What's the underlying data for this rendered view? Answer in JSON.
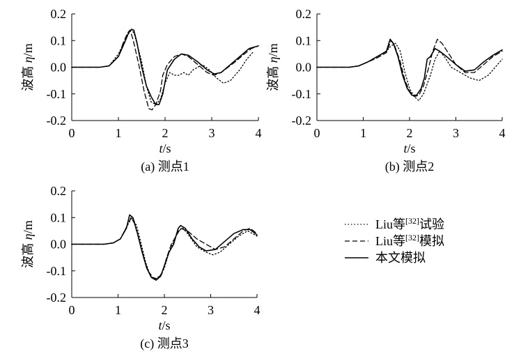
{
  "chart_data": [
    {
      "type": "line",
      "caption": "(a) 测点1",
      "xlabel_italic": "t",
      "xlabel_unit": "/s",
      "ylabel_prefix": "波高 ",
      "ylabel_italic": "η",
      "ylabel_unit": "/m",
      "xlim": [
        0,
        4
      ],
      "ylim": [
        -0.2,
        0.2
      ],
      "xticks": [
        "0",
        "1",
        "2",
        "3",
        "4"
      ],
      "yticks": [
        "-0.2",
        "-0.1",
        "0.0",
        "0.1",
        "0.2"
      ],
      "series": [
        {
          "style": "dotted",
          "points": [
            [
              0,
              0
            ],
            [
              0.6,
              0
            ],
            [
              0.8,
              0.005
            ],
            [
              1.0,
              0.05
            ],
            [
              1.2,
              0.12
            ],
            [
              1.28,
              0.145
            ],
            [
              1.35,
              0.12
            ],
            [
              1.5,
              0.02
            ],
            [
              1.6,
              -0.07
            ],
            [
              1.7,
              -0.13
            ],
            [
              1.8,
              -0.14
            ],
            [
              1.9,
              -0.12
            ],
            [
              2.0,
              -0.06
            ],
            [
              2.1,
              -0.02
            ],
            [
              2.2,
              -0.03
            ],
            [
              2.3,
              -0.03
            ],
            [
              2.4,
              -0.02
            ],
            [
              2.5,
              -0.03
            ],
            [
              2.6,
              -0.01
            ],
            [
              2.8,
              0.01
            ],
            [
              2.95,
              -0.01
            ],
            [
              3.1,
              -0.04
            ],
            [
              3.25,
              -0.06
            ],
            [
              3.4,
              -0.05
            ],
            [
              3.6,
              -0.01
            ],
            [
              3.75,
              0.03
            ],
            [
              3.9,
              0.06
            ]
          ]
        },
        {
          "style": "dashed",
          "points": [
            [
              0,
              0
            ],
            [
              0.6,
              0
            ],
            [
              0.8,
              0.005
            ],
            [
              1.0,
              0.04
            ],
            [
              1.1,
              0.09
            ],
            [
              1.2,
              0.13
            ],
            [
              1.25,
              0.14
            ],
            [
              1.32,
              0.1
            ],
            [
              1.45,
              0
            ],
            [
              1.55,
              -0.09
            ],
            [
              1.65,
              -0.155
            ],
            [
              1.72,
              -0.16
            ],
            [
              1.8,
              -0.14
            ],
            [
              1.9,
              -0.09
            ],
            [
              1.95,
              -0.03
            ],
            [
              2.05,
              0.01
            ],
            [
              2.2,
              0.04
            ],
            [
              2.35,
              0.05
            ],
            [
              2.5,
              0.04
            ],
            [
              2.7,
              0.01
            ],
            [
              2.9,
              -0.02
            ],
            [
              3.05,
              -0.03
            ],
            [
              3.2,
              -0.02
            ],
            [
              3.5,
              0.02
            ],
            [
              3.7,
              0.05
            ],
            [
              3.85,
              0.07
            ],
            [
              4.0,
              0.08
            ]
          ]
        },
        {
          "style": "solid",
          "points": [
            [
              0,
              0
            ],
            [
              0.6,
              0
            ],
            [
              0.8,
              0.005
            ],
            [
              1.0,
              0.04
            ],
            [
              1.15,
              0.1
            ],
            [
              1.22,
              0.13
            ],
            [
              1.27,
              0.14
            ],
            [
              1.33,
              0.14
            ],
            [
              1.4,
              0.09
            ],
            [
              1.5,
              0
            ],
            [
              1.6,
              -0.07
            ],
            [
              1.7,
              -0.11
            ],
            [
              1.8,
              -0.14
            ],
            [
              1.87,
              -0.14
            ],
            [
              1.95,
              -0.1
            ],
            [
              2.05,
              -0.01
            ],
            [
              2.2,
              0.03
            ],
            [
              2.35,
              0.05
            ],
            [
              2.5,
              0.045
            ],
            [
              2.7,
              0.02
            ],
            [
              2.9,
              -0.01
            ],
            [
              3.05,
              -0.025
            ],
            [
              3.2,
              -0.02
            ],
            [
              3.4,
              0.01
            ],
            [
              3.6,
              0.04
            ],
            [
              3.8,
              0.07
            ],
            [
              4.0,
              0.08
            ]
          ]
        }
      ]
    },
    {
      "type": "line",
      "caption": "(b) 测点2",
      "xlabel_italic": "t",
      "xlabel_unit": "/s",
      "ylabel_prefix": "波高 ",
      "ylabel_italic": "η",
      "ylabel_unit": "/m",
      "xlim": [
        0,
        4
      ],
      "ylim": [
        -0.2,
        0.2
      ],
      "xticks": [
        "0",
        "1",
        "2",
        "3",
        "4"
      ],
      "yticks": [
        "-0.2",
        "-0.1",
        "0.0",
        "0.1",
        "0.2"
      ],
      "series": [
        {
          "style": "dotted",
          "points": [
            [
              0,
              0
            ],
            [
              0.7,
              0
            ],
            [
              0.9,
              0.005
            ],
            [
              1.1,
              0.02
            ],
            [
              1.3,
              0.04
            ],
            [
              1.5,
              0.06
            ],
            [
              1.6,
              0.08
            ],
            [
              1.7,
              0.09
            ],
            [
              1.8,
              0.06
            ],
            [
              1.9,
              -0.02
            ],
            [
              2.0,
              -0.08
            ],
            [
              2.1,
              -0.11
            ],
            [
              2.2,
              -0.125
            ],
            [
              2.3,
              -0.1
            ],
            [
              2.45,
              -0.03
            ],
            [
              2.55,
              0.03
            ],
            [
              2.65,
              0.06
            ],
            [
              2.75,
              0.04
            ],
            [
              2.9,
              0
            ],
            [
              3.1,
              -0.02
            ],
            [
              3.3,
              -0.04
            ],
            [
              3.5,
              -0.05
            ],
            [
              3.7,
              -0.03
            ],
            [
              3.85,
              0
            ],
            [
              4.0,
              0.03
            ]
          ]
        },
        {
          "style": "dashed",
          "points": [
            [
              0,
              0
            ],
            [
              0.7,
              0
            ],
            [
              0.9,
              0.005
            ],
            [
              1.1,
              0.02
            ],
            [
              1.3,
              0.035
            ],
            [
              1.5,
              0.055
            ],
            [
              1.6,
              0.1
            ],
            [
              1.68,
              0.08
            ],
            [
              1.8,
              0.02
            ],
            [
              1.9,
              -0.05
            ],
            [
              2.0,
              -0.09
            ],
            [
              2.1,
              -0.11
            ],
            [
              2.2,
              -0.105
            ],
            [
              2.3,
              -0.07
            ],
            [
              2.4,
              -0.01
            ],
            [
              2.5,
              0.06
            ],
            [
              2.6,
              0.105
            ],
            [
              2.7,
              0.09
            ],
            [
              2.85,
              0.05
            ],
            [
              3.0,
              0.01
            ],
            [
              3.2,
              -0.02
            ],
            [
              3.4,
              -0.02
            ],
            [
              3.6,
              0.01
            ],
            [
              3.8,
              0.04
            ],
            [
              4.0,
              0.06
            ]
          ]
        },
        {
          "style": "solid",
          "points": [
            [
              0,
              0
            ],
            [
              0.7,
              0
            ],
            [
              0.9,
              0.005
            ],
            [
              1.1,
              0.02
            ],
            [
              1.3,
              0.04
            ],
            [
              1.5,
              0.06
            ],
            [
              1.58,
              0.105
            ],
            [
              1.65,
              0.09
            ],
            [
              1.75,
              0.04
            ],
            [
              1.85,
              -0.03
            ],
            [
              1.95,
              -0.08
            ],
            [
              2.05,
              -0.105
            ],
            [
              2.15,
              -0.105
            ],
            [
              2.25,
              -0.08
            ],
            [
              2.32,
              -0.04
            ],
            [
              2.38,
              0.03
            ],
            [
              2.45,
              0.04
            ],
            [
              2.55,
              0.07
            ],
            [
              2.65,
              0.06
            ],
            [
              2.8,
              0.04
            ],
            [
              3.0,
              0.01
            ],
            [
              3.2,
              -0.015
            ],
            [
              3.4,
              -0.01
            ],
            [
              3.6,
              0.02
            ],
            [
              3.8,
              0.045
            ],
            [
              4.0,
              0.065
            ]
          ]
        }
      ]
    },
    {
      "type": "line",
      "caption": "(c) 测点3",
      "xlabel_italic": "t",
      "xlabel_unit": "/s",
      "ylabel_prefix": "波高 ",
      "ylabel_italic": "η",
      "ylabel_unit": "/m",
      "xlim": [
        0,
        4
      ],
      "ylim": [
        -0.2,
        0.2
      ],
      "xticks": [
        "0",
        "1",
        "2",
        "3",
        "4"
      ],
      "yticks": [
        "-0.2",
        "-0.1",
        "0.0",
        "0.1",
        "0.2"
      ],
      "series": [
        {
          "style": "dotted",
          "points": [
            [
              0,
              0
            ],
            [
              0.7,
              0
            ],
            [
              0.9,
              0.005
            ],
            [
              1.05,
              0.02
            ],
            [
              1.2,
              0.07
            ],
            [
              1.3,
              0.1
            ],
            [
              1.4,
              0.07
            ],
            [
              1.5,
              0
            ],
            [
              1.6,
              -0.07
            ],
            [
              1.7,
              -0.12
            ],
            [
              1.8,
              -0.13
            ],
            [
              1.9,
              -0.12
            ],
            [
              2.0,
              -0.09
            ],
            [
              2.1,
              -0.03
            ],
            [
              2.2,
              0.01
            ],
            [
              2.3,
              0.05
            ],
            [
              2.4,
              0.06
            ],
            [
              2.5,
              0.04
            ],
            [
              2.7,
              -0.01
            ],
            [
              2.9,
              -0.03
            ],
            [
              3.05,
              -0.04
            ],
            [
              3.2,
              -0.03
            ],
            [
              3.4,
              0
            ],
            [
              3.6,
              0.03
            ],
            [
              3.8,
              0.05
            ],
            [
              4.0,
              0.03
            ]
          ]
        },
        {
          "style": "dashed",
          "points": [
            [
              0,
              0
            ],
            [
              0.7,
              0
            ],
            [
              0.9,
              0.005
            ],
            [
              1.05,
              0.02
            ],
            [
              1.2,
              0.07
            ],
            [
              1.28,
              0.1
            ],
            [
              1.35,
              0.08
            ],
            [
              1.45,
              0.02
            ],
            [
              1.55,
              -0.05
            ],
            [
              1.65,
              -0.1
            ],
            [
              1.75,
              -0.125
            ],
            [
              1.85,
              -0.13
            ],
            [
              1.95,
              -0.11
            ],
            [
              2.05,
              -0.05
            ],
            [
              2.15,
              0
            ],
            [
              2.25,
              0.03
            ],
            [
              2.35,
              0.06
            ],
            [
              2.5,
              0.05
            ],
            [
              2.7,
              0.02
            ],
            [
              2.9,
              0
            ],
            [
              3.1,
              -0.02
            ],
            [
              3.3,
              -0.01
            ],
            [
              3.5,
              0.02
            ],
            [
              3.7,
              0.05
            ],
            [
              3.85,
              0.06
            ],
            [
              4.0,
              0.04
            ]
          ]
        },
        {
          "style": "solid",
          "points": [
            [
              0,
              0
            ],
            [
              0.7,
              0
            ],
            [
              0.9,
              0.005
            ],
            [
              1.05,
              0.02
            ],
            [
              1.18,
              0.06
            ],
            [
              1.25,
              0.11
            ],
            [
              1.32,
              0.1
            ],
            [
              1.42,
              0.04
            ],
            [
              1.52,
              -0.03
            ],
            [
              1.62,
              -0.09
            ],
            [
              1.72,
              -0.125
            ],
            [
              1.82,
              -0.135
            ],
            [
              1.92,
              -0.12
            ],
            [
              2.0,
              -0.08
            ],
            [
              2.1,
              -0.03
            ],
            [
              2.2,
              0
            ],
            [
              2.3,
              0.06
            ],
            [
              2.35,
              0.07
            ],
            [
              2.45,
              0.06
            ],
            [
              2.6,
              0.02
            ],
            [
              2.75,
              -0.01
            ],
            [
              2.9,
              -0.025
            ],
            [
              3.1,
              -0.02
            ],
            [
              3.3,
              0.01
            ],
            [
              3.5,
              0.04
            ],
            [
              3.7,
              0.055
            ],
            [
              3.85,
              0.055
            ],
            [
              4.0,
              0.035
            ]
          ]
        }
      ]
    }
  ],
  "legend": {
    "items": [
      {
        "style": "dotted",
        "prefix": "Liu等",
        "ref": "[32]",
        "suffix": "试验"
      },
      {
        "style": "dashed",
        "prefix": "Liu等",
        "ref": "[32]",
        "suffix": "模拟"
      },
      {
        "style": "solid",
        "prefix": "本文模拟",
        "ref": "",
        "suffix": ""
      }
    ]
  }
}
